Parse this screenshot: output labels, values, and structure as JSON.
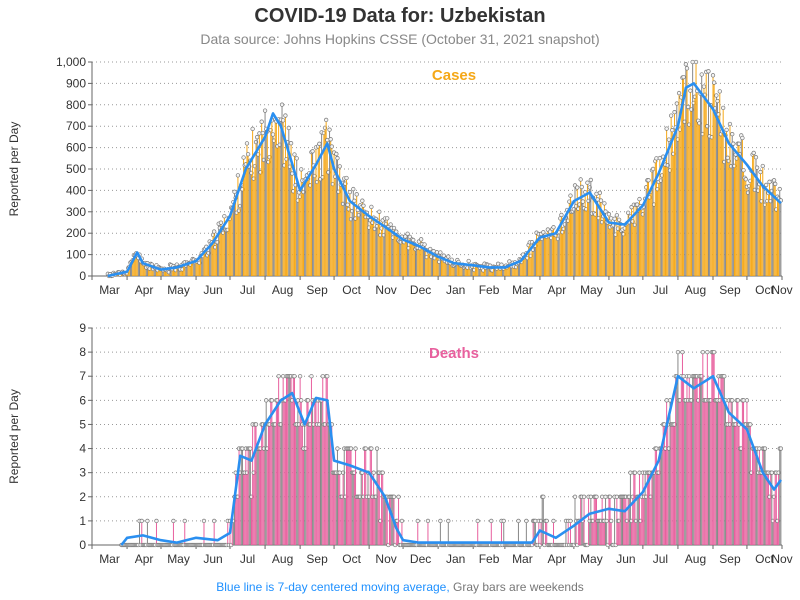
{
  "header": {
    "title": "COVID-19 Data for: Uzbekistan",
    "subtitle": "Data source: Johns Hopkins CSSE (October 31, 2021 snapshot)"
  },
  "footer": {
    "avg_note": "Blue line is 7-day centered moving average,",
    "weekend_note": "Gray bars are weekends"
  },
  "colors": {
    "cases_bar": "#f5a818",
    "deaths_bar": "#e8609e",
    "weekend_bar": "#888888",
    "moving_avg": "#2a8ff0",
    "cases_label": "#f5a818",
    "deaths_label": "#e8609e"
  },
  "chart_data": [
    {
      "type": "bar",
      "title": "Cases",
      "xlabel": "",
      "ylabel": "Reported per Day",
      "x_range": [
        "2020-03-01",
        "2021-11-01"
      ],
      "ylim": [
        0,
        1000
      ],
      "yticks": [
        0,
        100,
        200,
        300,
        400,
        500,
        600,
        700,
        800,
        900,
        1000
      ],
      "ytick_labels": [
        "0",
        "100",
        "200",
        "300",
        "400",
        "500",
        "600",
        "700",
        "800",
        "900",
        "1,000"
      ],
      "xtick_labels": [
        "Mar",
        "Apr",
        "May",
        "Jun",
        "Jul",
        "Aug",
        "Sep",
        "Oct",
        "Nov",
        "Dec",
        "Jan",
        "Feb",
        "Mar",
        "Apr",
        "May",
        "Jun",
        "Jul",
        "Aug",
        "Sep",
        "Oct",
        "Nov"
      ],
      "grid": "horizontal dotted",
      "series": [
        {
          "name": "",
          "kind": "daily bars (7-day moving average line overlay)",
          "dates": [
            "2020-03-15",
            "2020-04-01",
            "2020-04-10",
            "2020-04-15",
            "2020-05-01",
            "2020-05-15",
            "2020-06-01",
            "2020-06-15",
            "2020-07-01",
            "2020-07-15",
            "2020-08-01",
            "2020-08-08",
            "2020-08-15",
            "2020-09-01",
            "2020-09-15",
            "2020-09-25",
            "2020-10-01",
            "2020-10-15",
            "2020-11-01",
            "2020-11-15",
            "2020-12-01",
            "2020-12-15",
            "2021-01-01",
            "2021-01-15",
            "2021-02-01",
            "2021-02-15",
            "2021-03-01",
            "2021-03-15",
            "2021-04-01",
            "2021-04-15",
            "2021-05-01",
            "2021-05-15",
            "2021-06-01",
            "2021-06-15",
            "2021-07-01",
            "2021-07-15",
            "2021-08-01",
            "2021-08-08",
            "2021-08-15",
            "2021-09-01",
            "2021-09-15",
            "2021-10-01",
            "2021-10-15",
            "2021-10-31"
          ],
          "values": [
            0,
            20,
            110,
            60,
            30,
            40,
            70,
            150,
            280,
            500,
            650,
            760,
            700,
            400,
            520,
            620,
            500,
            350,
            280,
            230,
            170,
            140,
            90,
            60,
            50,
            40,
            40,
            70,
            180,
            200,
            350,
            390,
            250,
            240,
            330,
            480,
            700,
            880,
            900,
            780,
            620,
            520,
            420,
            340
          ]
        }
      ]
    },
    {
      "type": "bar",
      "title": "Deaths",
      "xlabel": "",
      "ylabel": "Reported per Day",
      "x_range": [
        "2020-03-01",
        "2021-11-01"
      ],
      "ylim": [
        0,
        9
      ],
      "yticks": [
        0,
        1,
        2,
        3,
        4,
        5,
        6,
        7,
        8,
        9
      ],
      "ytick_labels": [
        "0",
        "1",
        "2",
        "3",
        "4",
        "5",
        "6",
        "7",
        "8",
        "9"
      ],
      "xtick_labels": [
        "Mar",
        "Apr",
        "May",
        "Jun",
        "Jul",
        "Aug",
        "Sep",
        "Oct",
        "Nov",
        "Dec",
        "Jan",
        "Feb",
        "Mar",
        "Apr",
        "May",
        "Jun",
        "Jul",
        "Aug",
        "Sep",
        "Oct",
        "Nov"
      ],
      "grid": "horizontal dotted",
      "series": [
        {
          "name": "",
          "kind": "daily bars (7-day moving average line overlay)",
          "dates": [
            "2020-03-27",
            "2020-04-01",
            "2020-04-15",
            "2020-05-01",
            "2020-05-15",
            "2020-06-01",
            "2020-06-20",
            "2020-07-01",
            "2020-07-10",
            "2020-07-20",
            "2020-08-01",
            "2020-08-15",
            "2020-08-25",
            "2020-09-05",
            "2020-09-15",
            "2020-09-25",
            "2020-10-01",
            "2020-10-15",
            "2020-11-01",
            "2020-11-15",
            "2020-11-25",
            "2020-12-01",
            "2020-12-15",
            "2021-01-01",
            "2021-02-01",
            "2021-03-01",
            "2021-03-25",
            "2021-04-01",
            "2021-04-15",
            "2021-05-01",
            "2021-05-15",
            "2021-06-01",
            "2021-06-15",
            "2021-07-01",
            "2021-07-15",
            "2021-08-01",
            "2021-08-15",
            "2021-09-01",
            "2021-09-15",
            "2021-10-01",
            "2021-10-15",
            "2021-10-25",
            "2021-10-31"
          ],
          "values": [
            0.0,
            0.3,
            0.4,
            0.2,
            0.1,
            0.3,
            0.2,
            0.5,
            3.7,
            3.5,
            5.0,
            6.0,
            6.3,
            5.0,
            6.1,
            6.0,
            3.5,
            3.3,
            3.0,
            2.0,
            0.7,
            0.2,
            0.1,
            0.1,
            0.1,
            0.1,
            0.1,
            0.6,
            0.3,
            0.8,
            1.3,
            1.5,
            1.4,
            2.2,
            3.5,
            7.0,
            6.5,
            7.0,
            5.5,
            4.8,
            3.0,
            2.3,
            2.7
          ]
        }
      ]
    }
  ]
}
